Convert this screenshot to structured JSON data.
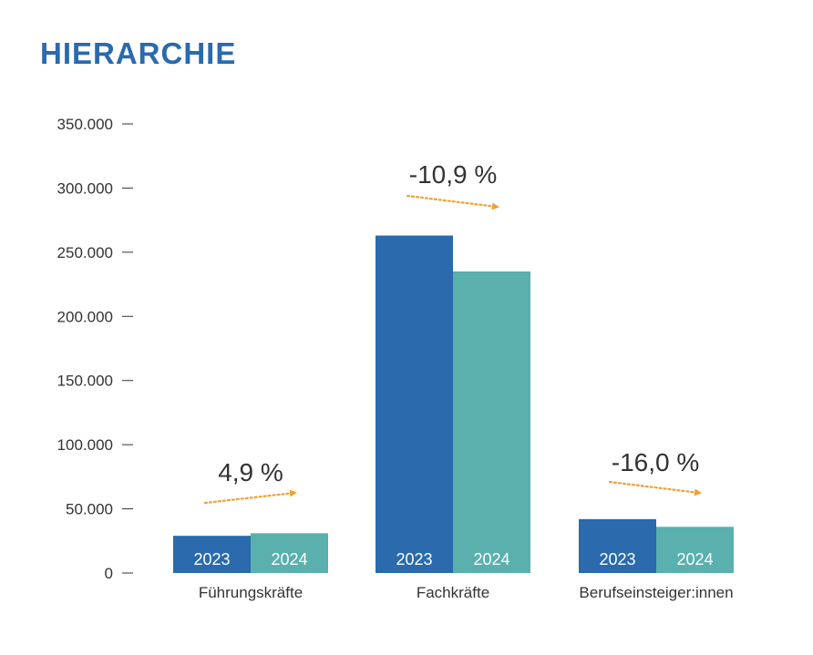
{
  "title": "HIERARCHIE",
  "colors": {
    "title": "#2a6aad",
    "series_2023": "#2a6aad",
    "series_2024": "#5ab0ac",
    "arrow": "#f0a030",
    "text": "#333333"
  },
  "chart_data": {
    "type": "bar",
    "categories": [
      "Führungskräfte",
      "Fachkräfte",
      "Berufseinsteiger:innen"
    ],
    "series": [
      {
        "name": "2023",
        "values": [
          29000,
          263000,
          42000
        ]
      },
      {
        "name": "2024",
        "values": [
          31000,
          235000,
          36000
        ]
      }
    ],
    "changes": [
      "4,9 %",
      "-10,9 %",
      "-16,0 %"
    ],
    "change_direction": [
      "up",
      "down",
      "down"
    ],
    "y_ticks": [
      0,
      50000,
      100000,
      150000,
      200000,
      250000,
      300000,
      350000
    ],
    "y_tick_labels": [
      "0",
      "50.000",
      "100.000",
      "150.000",
      "200.000",
      "250.000",
      "300.000",
      "350.000"
    ],
    "ylim": [
      0,
      350000
    ],
    "title": "HIERARCHIE",
    "xlabel": "",
    "ylabel": "",
    "grid": false,
    "legend": "none"
  }
}
